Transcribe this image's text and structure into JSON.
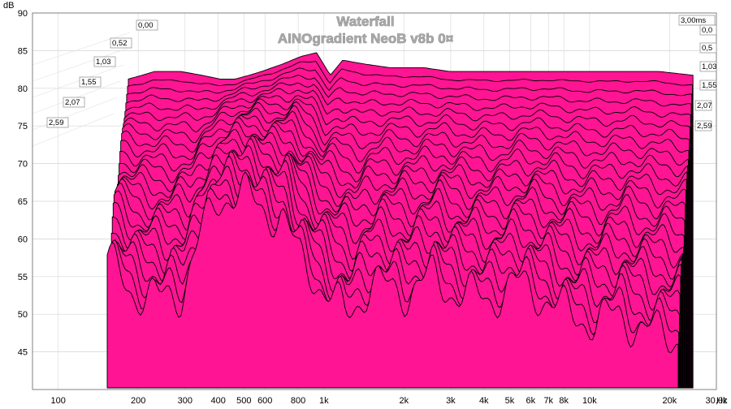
{
  "chart_data": {
    "type": "area",
    "title": "Waterfall",
    "subtitle": "AINOgradient NeoB v8b 0¤",
    "ylabel": "dB",
    "xunit": "Hz",
    "x_scale": "log",
    "xlim": [
      80,
      30000
    ],
    "ylim": [
      40,
      90
    ],
    "yticks": [
      45,
      50,
      55,
      60,
      65,
      70,
      75,
      80,
      85,
      90
    ],
    "xticks": [
      {
        "value": 100,
        "label": "100"
      },
      {
        "value": 200,
        "label": "200"
      },
      {
        "value": 300,
        "label": "300"
      },
      {
        "value": 400,
        "label": "400"
      },
      {
        "value": 500,
        "label": "500"
      },
      {
        "value": 600,
        "label": "600"
      },
      {
        "value": 800,
        "label": "800"
      },
      {
        "value": 1000,
        "label": "1k"
      },
      {
        "value": 2000,
        "label": "2k"
      },
      {
        "value": 3000,
        "label": "3k"
      },
      {
        "value": 4000,
        "label": "4k"
      },
      {
        "value": 5000,
        "label": "5k"
      },
      {
        "value": 6000,
        "label": "6k"
      },
      {
        "value": 7000,
        "label": "7k"
      },
      {
        "value": 8000,
        "label": "8k"
      },
      {
        "value": 10000,
        "label": "10k"
      },
      {
        "value": 20000,
        "label": "20k"
      },
      {
        "value": 30000,
        "label": "30,0k"
      }
    ],
    "time_labels_left": [
      "0,00",
      "0,52",
      "1,03",
      "1,55",
      "2,07",
      "2,59"
    ],
    "time_labels_right": [
      "3,00ms",
      "0,0",
      "0,5",
      "1,03",
      "1,55",
      "2,07",
      "2,59"
    ],
    "time_range_ms": [
      0,
      3.0
    ],
    "slice_count": 26,
    "fill_color": "#ff1493",
    "line_color": "#000000",
    "grid": true,
    "series": [
      {
        "time_ms": 0.0,
        "x": [
          160,
          180,
          200,
          250,
          300,
          350,
          400,
          450,
          500,
          600,
          700,
          800,
          900,
          1000,
          1200,
          1500,
          2000,
          2500,
          3000,
          4000,
          5000,
          6000,
          8000,
          10000,
          12000,
          15000,
          20000
        ],
        "y": [
          78,
          78.5,
          79,
          79,
          78.5,
          78,
          78,
          78.5,
          79,
          80,
          81,
          81.5,
          78.5,
          80.5,
          80,
          79.5,
          79.5,
          79,
          79,
          79,
          79,
          79,
          79,
          79,
          79,
          79,
          78.5
        ]
      },
      {
        "time_ms": 3.0,
        "x": [
          160,
          180,
          200,
          250,
          300,
          350,
          400,
          450,
          500,
          600,
          700,
          800,
          900,
          1000,
          1200,
          1500,
          2000,
          2500,
          3000,
          4000,
          5000,
          6000,
          8000,
          10000,
          12000,
          15000,
          20000
        ],
        "y": [
          57,
          55,
          53,
          52,
          53,
          60,
          65,
          66,
          66,
          64,
          63,
          58,
          56,
          53,
          50,
          54,
          53,
          55,
          53,
          52,
          54,
          53,
          50,
          49,
          50,
          48,
          47
        ]
      }
    ]
  }
}
